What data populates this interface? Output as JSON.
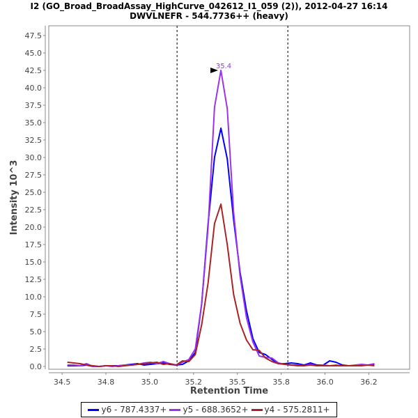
{
  "chart_data": {
    "type": "line",
    "title": "I2 (GO_Broad_BroadAssay_HighCurve_042612_I1_059 (2)), 2012-04-27 16:14",
    "subtitle": "DWVLNEFR - 544.7736++ (heavy)",
    "xlabel": "Retention Time",
    "ylabel": "Intensity 10^3",
    "xlim": [
      34.424,
      36.483
    ],
    "ylim": [
      -0.4,
      48.9
    ],
    "xticks": [
      34.5,
      34.75,
      35.0,
      35.25,
      35.5,
      35.75,
      36.0,
      36.25
    ],
    "xtick_labels": [
      "34.5",
      "34.8",
      "35.0",
      "35.2",
      "35.5",
      "35.8",
      "36.0",
      "36.2"
    ],
    "yticks": [
      0,
      2.5,
      5,
      7.5,
      10,
      12.5,
      15,
      17.5,
      20,
      22.5,
      25,
      27.5,
      30,
      32.5,
      35,
      37.5,
      40,
      42.5,
      45,
      47.5
    ],
    "ytick_labels": [
      "0.0",
      "2.5",
      "5.0",
      "7.5",
      "10.0",
      "12.5",
      "15.0",
      "17.5",
      "20.0",
      "22.5",
      "25.0",
      "27.5",
      "30.0",
      "32.5",
      "35.0",
      "37.5",
      "40.0",
      "42.5",
      "45.0",
      "47.5"
    ],
    "grid": false,
    "integration_bounds": [
      35.156,
      35.788
    ],
    "x_start": 34.53,
    "x_step": 0.0365,
    "series": [
      {
        "name": "y6 - 787.4337+",
        "color": "#0000ff",
        "values": [
          0.1,
          0.1,
          0.1,
          0.2,
          0.0,
          0.0,
          0.1,
          0.1,
          0.1,
          0.2,
          0.3,
          0.4,
          0.2,
          0.3,
          0.4,
          0.5,
          0.3,
          0.2,
          0.3,
          0.8,
          2.0,
          9.0,
          20.5,
          30.0,
          34.2,
          29.8,
          21.0,
          13.5,
          8.0,
          4.0,
          2.0,
          1.7,
          1.0,
          0.4,
          0.4,
          0.5,
          0.4,
          0.2,
          0.5,
          0.2,
          0.2,
          0.8,
          0.6,
          0.2,
          0.1,
          0.1,
          0.2,
          0.2,
          0.3
        ]
      },
      {
        "name": "y5 - 688.3652+",
        "color": "#9933ee",
        "values": [
          0.2,
          0.2,
          0.1,
          0.4,
          0.0,
          0.0,
          0.1,
          0.0,
          0.1,
          0.2,
          0.2,
          0.3,
          0.5,
          0.6,
          0.4,
          0.7,
          0.4,
          0.2,
          0.6,
          1.0,
          2.5,
          9.0,
          20.0,
          37.2,
          42.5,
          37.0,
          22.0,
          13.0,
          7.0,
          3.5,
          1.5,
          1.3,
          1.2,
          0.5,
          0.3,
          0.2,
          0.2,
          0.1,
          0.3,
          0.1,
          0.2,
          0.1,
          0.2,
          0.1,
          0.1,
          0.2,
          0.3,
          0.2,
          0.4
        ]
      },
      {
        "name": "y4 - 575.2811+",
        "color": "#aa2222",
        "values": [
          0.6,
          0.5,
          0.4,
          0.2,
          0.1,
          0.0,
          0.1,
          0.1,
          0.0,
          0.1,
          0.2,
          0.3,
          0.4,
          0.5,
          0.6,
          0.3,
          0.4,
          0.2,
          0.8,
          0.7,
          1.7,
          6.0,
          12.0,
          20.5,
          23.3,
          17.5,
          10.3,
          6.2,
          3.8,
          2.4,
          2.3,
          1.2,
          0.7,
          0.4,
          0.3,
          0.2,
          0.1,
          0.1,
          0.2,
          0.1,
          0.1,
          0.1,
          0.1,
          0.1,
          0.1,
          0.1,
          0.1,
          0.2,
          0.1
        ]
      }
    ],
    "annotation": {
      "text": "35.4",
      "series": "y5 - 688.3652+",
      "x": 35.406,
      "y": 42.5,
      "color": "#9933ee"
    },
    "legend": "bottom"
  }
}
